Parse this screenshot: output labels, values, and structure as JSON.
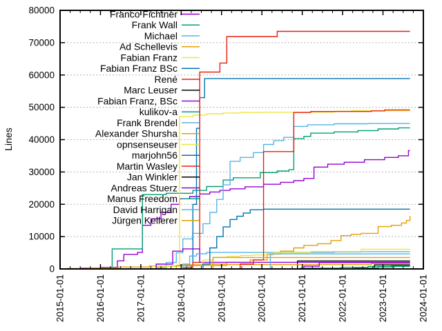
{
  "chart_data": {
    "type": "line",
    "title": "",
    "xlabel": "",
    "ylabel": "Lines",
    "x_unit": "decimal_year",
    "xlim": [
      2015,
      2024
    ],
    "ylim": [
      0,
      80000
    ],
    "grid": "horizontal-dotted",
    "grid_color": "#9a9a9a",
    "legend_position": "top-left-inside",
    "data_end": 2023.67,
    "x_tick_values": [
      2015,
      2016,
      2017,
      2018,
      2019,
      2020,
      2021,
      2022,
      2023,
      2024
    ],
    "x_tick_labels": [
      "2015-01-01",
      "2016-01-01",
      "2017-01-01",
      "2018-01-01",
      "2019-01-01",
      "2020-01-01",
      "2021-01-01",
      "2022-01-01",
      "2023-01-01",
      "2024-01-01"
    ],
    "x_minor_step": 0.25,
    "y_tick_values": [
      0,
      10000,
      20000,
      30000,
      40000,
      50000,
      60000,
      70000,
      80000
    ],
    "y_tick_labels": [
      "0",
      "10000",
      "20000",
      "30000",
      "40000",
      "50000",
      "60000",
      "70000",
      "80000"
    ],
    "series": [
      {
        "name": "Franco Fichtner",
        "color": "#9400d3",
        "points": [
          [
            2015.5,
            250
          ],
          [
            2016.0,
            500
          ],
          [
            2016.42,
            2500
          ],
          [
            2016.58,
            4500
          ],
          [
            2016.92,
            5100
          ],
          [
            2017.04,
            13500
          ],
          [
            2017.25,
            15500
          ],
          [
            2017.5,
            17500
          ],
          [
            2017.75,
            20000
          ],
          [
            2017.96,
            21700
          ],
          [
            2018.21,
            22400
          ],
          [
            2018.46,
            23200
          ],
          [
            2018.71,
            23800
          ],
          [
            2018.96,
            24300
          ],
          [
            2019.21,
            24800
          ],
          [
            2019.58,
            25400
          ],
          [
            2020.04,
            26200
          ],
          [
            2020.46,
            26800
          ],
          [
            2020.79,
            27300
          ],
          [
            2021.04,
            28000
          ],
          [
            2021.29,
            31500
          ],
          [
            2021.63,
            32400
          ],
          [
            2022.04,
            33000
          ],
          [
            2022.54,
            33800
          ],
          [
            2023.04,
            34500
          ],
          [
            2023.38,
            35000
          ],
          [
            2023.63,
            36600
          ]
        ]
      },
      {
        "name": "Frank Wall",
        "color": "#009e73",
        "points": [
          [
            2016.29,
            6200
          ],
          [
            2017.04,
            23000
          ],
          [
            2017.63,
            23400
          ],
          [
            2018.29,
            24300
          ],
          [
            2018.63,
            25500
          ],
          [
            2019.04,
            27500
          ],
          [
            2019.29,
            28200
          ],
          [
            2019.96,
            29800
          ],
          [
            2020.38,
            30300
          ],
          [
            2020.67,
            30700
          ],
          [
            2020.79,
            40300
          ],
          [
            2021.04,
            41000
          ],
          [
            2021.21,
            42000
          ],
          [
            2021.79,
            42400
          ],
          [
            2022.38,
            42800
          ],
          [
            2022.88,
            43300
          ],
          [
            2023.38,
            43650
          ]
        ]
      },
      {
        "name": "Michael",
        "color": "#56b4e9",
        "points": [
          [
            2017.38,
            400
          ],
          [
            2017.63,
            2000
          ],
          [
            2017.88,
            5000
          ],
          [
            2018.04,
            9300
          ],
          [
            2018.29,
            11000
          ],
          [
            2018.54,
            14000
          ],
          [
            2018.71,
            17500
          ],
          [
            2018.88,
            21500
          ],
          [
            2019.04,
            26000
          ],
          [
            2019.21,
            33300
          ],
          [
            2019.46,
            34500
          ],
          [
            2019.79,
            36000
          ],
          [
            2020.04,
            38500
          ],
          [
            2020.29,
            39700
          ],
          [
            2020.54,
            40700
          ],
          [
            2020.79,
            44100
          ],
          [
            2021.13,
            44600
          ],
          [
            2021.79,
            44900
          ],
          [
            2022.63,
            45000
          ]
        ]
      },
      {
        "name": "Ad Schellevis",
        "color": "#e69f00",
        "points": [
          [
            2015.17,
            150
          ],
          [
            2015.71,
            350
          ],
          [
            2016.46,
            600
          ],
          [
            2017.21,
            900
          ],
          [
            2017.96,
            1300
          ],
          [
            2018.54,
            1500
          ],
          [
            2019.13,
            2000
          ],
          [
            2019.71,
            2800
          ],
          [
            2020.13,
            4600
          ],
          [
            2020.46,
            5500
          ],
          [
            2020.79,
            6500
          ],
          [
            2021.04,
            7300
          ],
          [
            2021.38,
            7800
          ],
          [
            2021.71,
            8800
          ],
          [
            2021.96,
            10300
          ],
          [
            2022.21,
            10700
          ],
          [
            2022.46,
            11000
          ],
          [
            2022.88,
            13100
          ],
          [
            2023.21,
            13500
          ],
          [
            2023.46,
            14200
          ],
          [
            2023.58,
            15000
          ],
          [
            2023.67,
            16400
          ]
        ]
      },
      {
        "name": "Fabian Franz",
        "color": "#f0e442",
        "points": [
          [
            2017.29,
            800
          ],
          [
            2017.96,
            47100
          ],
          [
            2018.29,
            47600
          ],
          [
            2018.63,
            48000
          ],
          [
            2019.04,
            48250
          ],
          [
            2019.46,
            48400
          ],
          [
            2020.04,
            48500
          ],
          [
            2021.79,
            48800
          ],
          [
            2022.21,
            48950
          ]
        ]
      },
      {
        "name": "Fabian Franz BSc",
        "color": "#0072b2",
        "points": [
          [
            2018.13,
            1000
          ],
          [
            2018.29,
            20000
          ],
          [
            2018.38,
            43500
          ],
          [
            2018.46,
            53000
          ],
          [
            2018.58,
            58900
          ]
        ]
      },
      {
        "name": "René",
        "color": "#e51e10",
        "points": [
          [
            2018.04,
            500
          ],
          [
            2018.29,
            2000
          ],
          [
            2018.46,
            60900
          ],
          [
            2018.96,
            63700
          ],
          [
            2019.13,
            71900
          ],
          [
            2020.38,
            73500
          ]
        ]
      },
      {
        "name": "Marc Leuser",
        "color": "#000000",
        "points": [
          [
            2020.88,
            2450
          ]
        ]
      },
      {
        "name": "Fabian Franz, BSc",
        "color": "#9400d3",
        "points": [
          [
            2017.38,
            1500
          ],
          [
            2017.79,
            5500
          ],
          [
            2018.04,
            6200
          ],
          [
            2018.46,
            2050
          ]
        ]
      },
      {
        "name": "kulikov-a",
        "color": "#009e73",
        "points": [
          [
            2020.96,
            250
          ],
          [
            2021.96,
            500
          ],
          [
            2022.63,
            800
          ],
          [
            2023.21,
            950
          ]
        ]
      },
      {
        "name": "Frank Brendel",
        "color": "#56b4e9",
        "points": [
          [
            2018.04,
            1500
          ],
          [
            2018.21,
            4000
          ],
          [
            2018.38,
            4700
          ],
          [
            2018.63,
            5100
          ],
          [
            2021.79,
            5250
          ],
          [
            2022.46,
            5350
          ]
        ]
      },
      {
        "name": "Alexander Shursha",
        "color": "#e69f00",
        "points": [
          [
            2017.88,
            1060
          ],
          [
            2019.13,
            1340
          ],
          [
            2022.71,
            1700
          ]
        ]
      },
      {
        "name": "opnsenseuser",
        "color": "#f0e442",
        "points": [
          [
            2018.54,
            2800
          ],
          [
            2018.79,
            3600
          ],
          [
            2019.13,
            3900
          ],
          [
            2019.46,
            4150
          ],
          [
            2019.79,
            4300
          ],
          [
            2020.29,
            5000
          ],
          [
            2021.21,
            5400
          ],
          [
            2022.46,
            6100
          ]
        ]
      },
      {
        "name": "marjohn56",
        "color": "#0072b2",
        "points": [
          [
            2018.54,
            1500
          ],
          [
            2018.71,
            6500
          ],
          [
            2018.88,
            10000
          ],
          [
            2019.04,
            13000
          ],
          [
            2019.21,
            15300
          ],
          [
            2019.38,
            16300
          ],
          [
            2019.54,
            17300
          ],
          [
            2019.71,
            18300
          ],
          [
            2020.04,
            18500
          ]
        ]
      },
      {
        "name": "Martin Wasley",
        "color": "#e51e10",
        "points": [
          [
            2019.46,
            1500
          ],
          [
            2019.79,
            2800
          ],
          [
            2020.04,
            36300
          ],
          [
            2020.79,
            48400
          ],
          [
            2021.21,
            48700
          ],
          [
            2022.71,
            48900
          ],
          [
            2023.04,
            49200
          ]
        ]
      },
      {
        "name": "Jan Winkler",
        "color": "#000000",
        "points": [
          [
            2022.79,
            1250
          ]
        ]
      },
      {
        "name": "Andreas Stuerz",
        "color": "#9400d3",
        "points": [
          [
            2021.04,
            850
          ],
          [
            2021.42,
            1950
          ]
        ]
      },
      {
        "name": "Manus Freedom",
        "color": "#009e73",
        "points": [
          [
            2022.29,
            300
          ],
          [
            2022.88,
            600
          ],
          [
            2023.29,
            800
          ]
        ]
      },
      {
        "name": "David Harrigan",
        "color": "#56b4e9",
        "points": [
          [
            2020.21,
            4660
          ]
        ]
      },
      {
        "name": "Jürgen Kellerer",
        "color": "#e69f00",
        "points": [
          [
            2018.79,
            3550
          ]
        ]
      }
    ]
  }
}
